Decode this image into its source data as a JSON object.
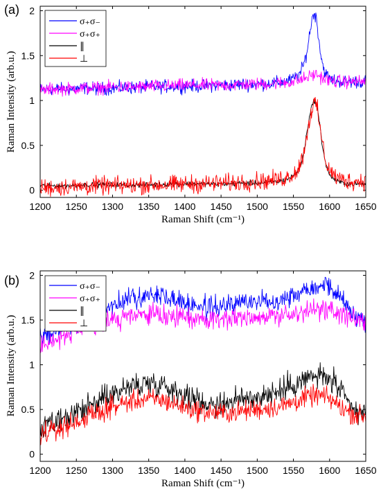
{
  "chart_data": [
    {
      "panel_label": "(a)",
      "type": "line",
      "xlabel": "Raman Shift (cm⁻¹)",
      "ylabel": "Raman Intensity (arb.u.)",
      "xlim": [
        1200,
        1650
      ],
      "ylim": [
        -0.08,
        2.05
      ],
      "xticks": [
        1200,
        1250,
        1300,
        1350,
        1400,
        1450,
        1500,
        1550,
        1600,
        1650
      ],
      "yticks": [
        0,
        0.5,
        1,
        1.5,
        2
      ],
      "ytick_labels": [
        "0",
        "0.5",
        "1",
        "1.5",
        "2"
      ],
      "legend_position": "top-left",
      "series": [
        {
          "name": "σ₊σ₋",
          "color": "#0000ff",
          "x": [
            1200,
            1220,
            1240,
            1260,
            1280,
            1300,
            1320,
            1340,
            1360,
            1380,
            1400,
            1420,
            1440,
            1460,
            1480,
            1500,
            1520,
            1530,
            1540,
            1550,
            1555,
            1560,
            1565,
            1570,
            1573,
            1576,
            1579,
            1582,
            1585,
            1588,
            1592,
            1596,
            1600,
            1610,
            1620,
            1630,
            1640,
            1650
          ],
          "y": [
            1.12,
            1.13,
            1.12,
            1.14,
            1.13,
            1.14,
            1.14,
            1.15,
            1.15,
            1.16,
            1.16,
            1.16,
            1.17,
            1.17,
            1.18,
            1.18,
            1.19,
            1.2,
            1.21,
            1.24,
            1.27,
            1.31,
            1.42,
            1.6,
            1.78,
            1.92,
            1.98,
            1.9,
            1.7,
            1.5,
            1.35,
            1.28,
            1.24,
            1.22,
            1.21,
            1.21,
            1.21,
            1.21
          ]
        },
        {
          "name": "σ₊σ₊",
          "color": "#ff00ff",
          "x": [
            1200,
            1220,
            1240,
            1260,
            1280,
            1300,
            1320,
            1340,
            1360,
            1380,
            1400,
            1420,
            1440,
            1460,
            1480,
            1500,
            1520,
            1540,
            1550,
            1560,
            1570,
            1575,
            1580,
            1585,
            1590,
            1600,
            1610,
            1620,
            1630,
            1640,
            1650
          ],
          "y": [
            1.11,
            1.13,
            1.13,
            1.14,
            1.14,
            1.15,
            1.15,
            1.15,
            1.16,
            1.16,
            1.17,
            1.17,
            1.17,
            1.17,
            1.18,
            1.18,
            1.19,
            1.2,
            1.21,
            1.23,
            1.26,
            1.28,
            1.29,
            1.28,
            1.25,
            1.22,
            1.21,
            1.21,
            1.21,
            1.21,
            1.21
          ]
        },
        {
          "name": "∥",
          "color": "#000000",
          "x": [
            1200,
            1220,
            1240,
            1260,
            1280,
            1300,
            1320,
            1340,
            1360,
            1380,
            1400,
            1420,
            1440,
            1460,
            1480,
            1500,
            1520,
            1530,
            1540,
            1550,
            1555,
            1560,
            1565,
            1570,
            1574,
            1578,
            1580,
            1583,
            1586,
            1590,
            1595,
            1600,
            1610,
            1620,
            1630,
            1640,
            1650
          ],
          "y": [
            0.05,
            0.05,
            0.05,
            0.06,
            0.06,
            0.06,
            0.06,
            0.06,
            0.06,
            0.07,
            0.07,
            0.07,
            0.07,
            0.07,
            0.08,
            0.08,
            0.09,
            0.1,
            0.12,
            0.16,
            0.2,
            0.27,
            0.45,
            0.72,
            0.9,
            0.99,
            1.0,
            0.92,
            0.75,
            0.5,
            0.28,
            0.17,
            0.1,
            0.08,
            0.07,
            0.07,
            0.07
          ]
        },
        {
          "name": "⊥",
          "color": "#ff0000",
          "x": [
            1200,
            1220,
            1240,
            1260,
            1280,
            1300,
            1320,
            1340,
            1360,
            1380,
            1400,
            1420,
            1440,
            1460,
            1480,
            1500,
            1520,
            1530,
            1540,
            1550,
            1555,
            1560,
            1565,
            1570,
            1574,
            1578,
            1580,
            1583,
            1586,
            1590,
            1595,
            1600,
            1610,
            1620,
            1630,
            1640,
            1650
          ],
          "y": [
            0.03,
            0.03,
            0.04,
            0.04,
            0.05,
            0.05,
            0.05,
            0.06,
            0.06,
            0.06,
            0.07,
            0.07,
            0.08,
            0.08,
            0.09,
            0.1,
            0.11,
            0.12,
            0.14,
            0.18,
            0.22,
            0.3,
            0.45,
            0.68,
            0.86,
            0.95,
            0.97,
            0.9,
            0.74,
            0.52,
            0.32,
            0.22,
            0.14,
            0.11,
            0.1,
            0.1,
            0.11
          ]
        }
      ]
    },
    {
      "panel_label": "(b)",
      "type": "line",
      "xlabel": "Raman Shift (cm⁻¹)",
      "ylabel": "Raman Intensity (arb.u.)",
      "xlim": [
        1200,
        1650
      ],
      "ylim": [
        -0.08,
        2.05
      ],
      "xticks": [
        1200,
        1250,
        1300,
        1350,
        1400,
        1450,
        1500,
        1550,
        1600,
        1650
      ],
      "yticks": [
        0,
        0.5,
        1,
        1.5,
        2
      ],
      "ytick_labels": [
        "0",
        "0.5",
        "1",
        "1.5",
        "2"
      ],
      "legend_position": "top-left",
      "series": [
        {
          "name": "σ₊σ₋",
          "color": "#0000ff",
          "x": [
            1200,
            1225,
            1250,
            1275,
            1300,
            1325,
            1350,
            1370,
            1390,
            1410,
            1430,
            1450,
            1470,
            1490,
            1510,
            1530,
            1550,
            1570,
            1590,
            1600,
            1610,
            1620,
            1630,
            1640,
            1650
          ],
          "y": [
            1.32,
            1.38,
            1.46,
            1.57,
            1.67,
            1.74,
            1.78,
            1.77,
            1.72,
            1.67,
            1.64,
            1.65,
            1.68,
            1.71,
            1.71,
            1.73,
            1.78,
            1.86,
            1.9,
            1.88,
            1.8,
            1.7,
            1.6,
            1.52,
            1.5
          ]
        },
        {
          "name": "σ₊σ₊",
          "color": "#ff00ff",
          "x": [
            1200,
            1225,
            1250,
            1275,
            1300,
            1325,
            1350,
            1370,
            1390,
            1410,
            1430,
            1450,
            1470,
            1490,
            1510,
            1530,
            1550,
            1570,
            1590,
            1600,
            1610,
            1620,
            1630,
            1640,
            1650
          ],
          "y": [
            1.22,
            1.3,
            1.37,
            1.45,
            1.5,
            1.54,
            1.56,
            1.55,
            1.53,
            1.52,
            1.51,
            1.52,
            1.53,
            1.54,
            1.54,
            1.55,
            1.56,
            1.6,
            1.62,
            1.61,
            1.58,
            1.55,
            1.52,
            1.5,
            1.48
          ]
        },
        {
          "name": "∥",
          "color": "#000000",
          "x": [
            1200,
            1225,
            1250,
            1275,
            1300,
            1325,
            1350,
            1370,
            1390,
            1410,
            1430,
            1450,
            1470,
            1490,
            1510,
            1530,
            1550,
            1570,
            1585,
            1600,
            1610,
            1620,
            1630,
            1640,
            1650
          ],
          "y": [
            0.28,
            0.35,
            0.45,
            0.57,
            0.68,
            0.76,
            0.8,
            0.78,
            0.7,
            0.62,
            0.57,
            0.57,
            0.6,
            0.63,
            0.66,
            0.7,
            0.78,
            0.85,
            0.88,
            0.84,
            0.76,
            0.63,
            0.52,
            0.46,
            0.45
          ]
        },
        {
          "name": "⊥",
          "color": "#ff0000",
          "x": [
            1200,
            1225,
            1250,
            1275,
            1300,
            1325,
            1350,
            1370,
            1390,
            1410,
            1430,
            1450,
            1470,
            1490,
            1510,
            1530,
            1550,
            1570,
            1585,
            1600,
            1610,
            1620,
            1630,
            1640,
            1650
          ],
          "y": [
            0.22,
            0.28,
            0.36,
            0.45,
            0.53,
            0.59,
            0.62,
            0.6,
            0.55,
            0.5,
            0.47,
            0.46,
            0.47,
            0.49,
            0.51,
            0.53,
            0.58,
            0.64,
            0.66,
            0.62,
            0.56,
            0.5,
            0.46,
            0.43,
            0.42
          ]
        }
      ]
    }
  ]
}
